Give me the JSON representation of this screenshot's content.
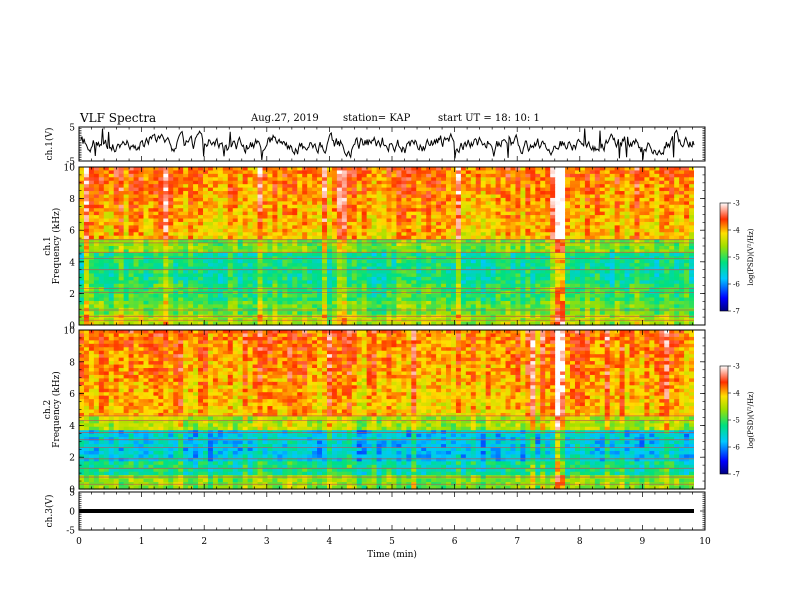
{
  "header": {
    "title": "VLF Spectra",
    "date": "Aug.27, 2019",
    "station": "station= KAP",
    "start_ut": "start  UT =  18: 10: 1"
  },
  "chart_data": [
    {
      "type": "line",
      "panel": "ch1-waveform",
      "ylabel": "ch.1(V)",
      "xlim": [
        0,
        10
      ],
      "ylim": [
        -5,
        5
      ],
      "yticks": [
        "5",
        "-5"
      ],
      "description_level": "noisy signal roughly between -3 and 3 V"
    },
    {
      "type": "heatmap",
      "panel": "ch1-spectrogram",
      "ylabel": "ch.1\nFrequency (kHz)",
      "xlim": [
        0,
        9.85
      ],
      "ylim": [
        0,
        10
      ],
      "yticks": [
        "0",
        "2",
        "4",
        "6",
        "8",
        "10"
      ],
      "colorbar": {
        "label": "log(PSD)(V²/Hz)",
        "range": [
          -7,
          -3
        ],
        "ticks": [
          "-3",
          "-4",
          "-5",
          "-6",
          "-7"
        ]
      }
    },
    {
      "type": "heatmap",
      "panel": "ch2-spectrogram",
      "ylabel": "ch.2\nFrequency (kHz)",
      "xlim": [
        0,
        9.85
      ],
      "ylim": [
        0,
        10
      ],
      "yticks": [
        "0",
        "2",
        "4",
        "6",
        "8",
        "10"
      ],
      "colorbar": {
        "label": "log(PSD)(V²/Hz)",
        "range": [
          -7,
          -3
        ],
        "ticks": [
          "-3",
          "-4",
          "-5",
          "-6",
          "-7"
        ]
      }
    },
    {
      "type": "line",
      "panel": "ch3-waveform",
      "ylabel": "ch.3(V)",
      "xlabel": "Time (min)",
      "xlim": [
        0,
        10
      ],
      "ylim": [
        -5,
        5
      ],
      "yticks": [
        "5",
        "0",
        "-5"
      ],
      "xticks": [
        "0",
        "1",
        "2",
        "3",
        "4",
        "5",
        "6",
        "7",
        "8",
        "9",
        "10"
      ],
      "constant_value": 0
    }
  ]
}
